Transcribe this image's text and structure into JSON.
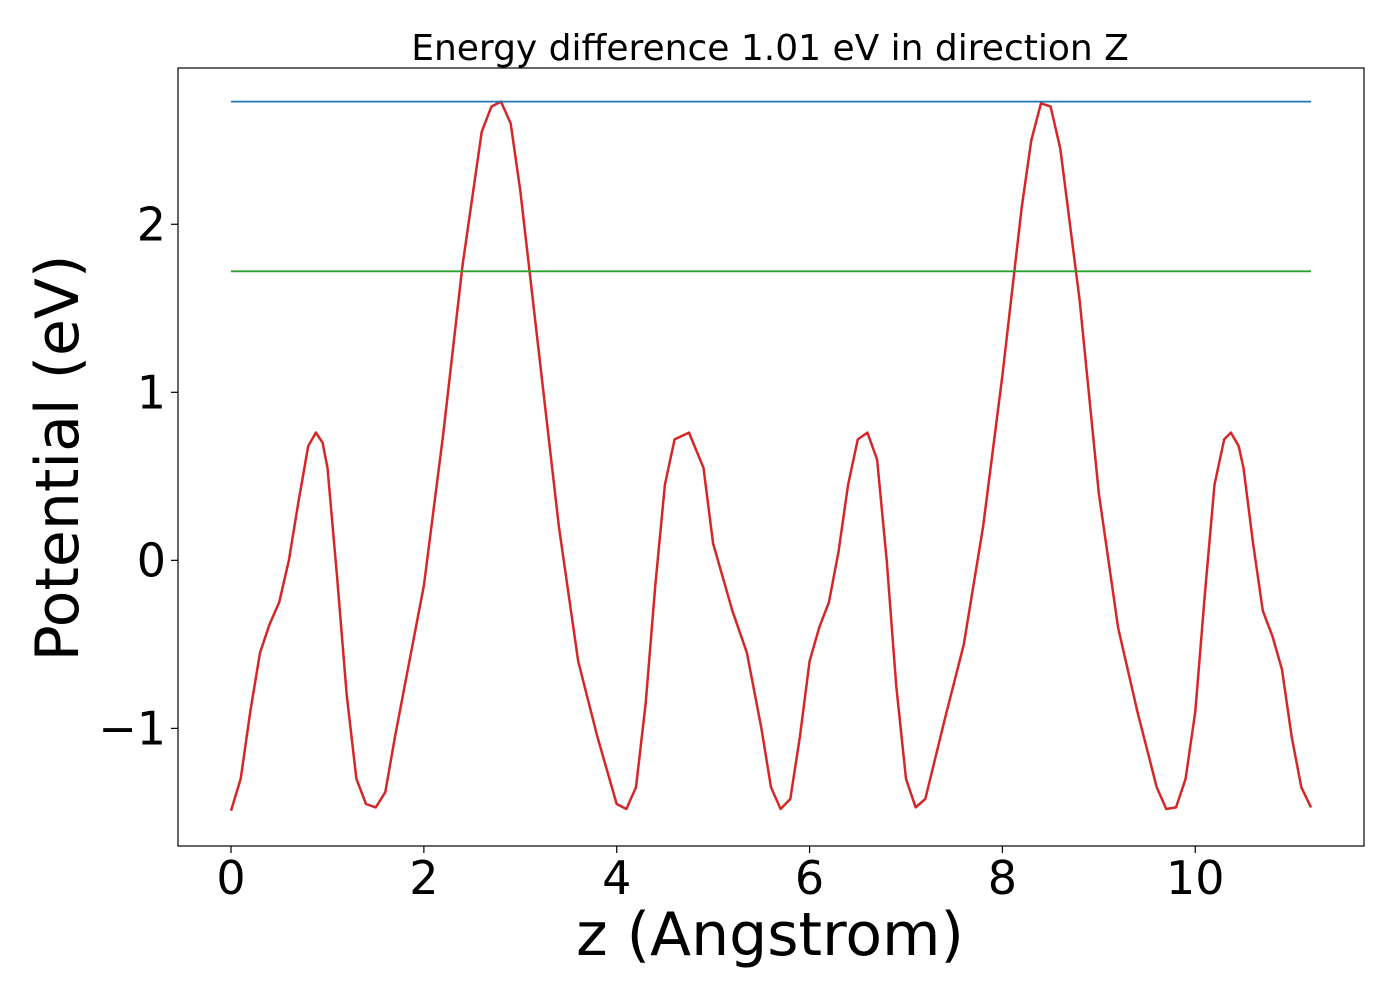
{
  "chart_data": {
    "type": "line",
    "title": "Energy difference 1.01 eV in direction Z",
    "xlabel": "z (Angstrom)",
    "ylabel": "Potential (eV)",
    "xlim": [
      -0.55,
      11.75
    ],
    "ylim": [
      -1.7,
      2.93
    ],
    "x_ticks": [
      0,
      2,
      4,
      6,
      8,
      10
    ],
    "x_tick_labels": [
      "0",
      "2",
      "4",
      "6",
      "8",
      "10"
    ],
    "y_ticks": [
      -1,
      0,
      1,
      2
    ],
    "y_tick_labels": [
      "−1",
      "0",
      "1",
      "2"
    ],
    "grid": false,
    "legend": "none",
    "series": [
      {
        "color": "#d62728",
        "x": [
          0.0,
          0.1,
          0.2,
          0.3,
          0.4,
          0.5,
          0.6,
          0.7,
          0.8,
          0.88,
          0.95,
          1.0,
          1.1,
          1.2,
          1.3,
          1.4,
          1.5,
          1.6,
          1.7,
          1.8,
          2.0,
          2.2,
          2.4,
          2.6,
          2.7,
          2.8,
          2.9,
          3.0,
          3.2,
          3.4,
          3.6,
          3.8,
          4.0,
          4.1,
          4.2,
          4.3,
          4.4,
          4.5,
          4.6,
          4.75,
          4.9,
          5.0,
          5.2,
          5.35,
          5.5,
          5.6,
          5.7,
          5.8,
          5.9,
          6.0,
          6.1,
          6.2,
          6.3,
          6.4,
          6.5,
          6.6,
          6.7,
          6.8,
          6.9,
          7.0,
          7.1,
          7.2,
          7.4,
          7.6,
          7.8,
          8.0,
          8.2,
          8.3,
          8.4,
          8.5,
          8.6,
          8.8,
          9.0,
          9.2,
          9.4,
          9.6,
          9.7,
          9.8,
          9.9,
          10.0,
          10.1,
          10.2,
          10.3,
          10.37,
          10.45,
          10.5,
          10.6,
          10.7,
          10.8,
          10.9,
          11.0,
          11.1,
          11.2
        ],
        "y": [
          -1.49,
          -1.3,
          -0.9,
          -0.55,
          -0.38,
          -0.25,
          0.0,
          0.35,
          0.68,
          0.76,
          0.7,
          0.55,
          -0.1,
          -0.8,
          -1.3,
          -1.45,
          -1.47,
          -1.38,
          -1.05,
          -0.75,
          -0.15,
          0.75,
          1.75,
          2.55,
          2.7,
          2.73,
          2.6,
          2.2,
          1.2,
          0.2,
          -0.6,
          -1.05,
          -1.45,
          -1.48,
          -1.35,
          -0.85,
          -0.15,
          0.45,
          0.72,
          0.76,
          0.55,
          0.1,
          -0.3,
          -0.55,
          -1.0,
          -1.35,
          -1.48,
          -1.42,
          -1.05,
          -0.6,
          -0.4,
          -0.25,
          0.05,
          0.45,
          0.72,
          0.76,
          0.6,
          0.0,
          -0.75,
          -1.3,
          -1.47,
          -1.42,
          -0.95,
          -0.5,
          0.2,
          1.1,
          2.1,
          2.5,
          2.72,
          2.7,
          2.45,
          1.55,
          0.4,
          -0.4,
          -0.9,
          -1.35,
          -1.48,
          -1.47,
          -1.3,
          -0.9,
          -0.2,
          0.45,
          0.72,
          0.76,
          0.68,
          0.55,
          0.1,
          -0.3,
          -0.45,
          -0.65,
          -1.05,
          -1.35,
          -1.47
        ]
      },
      {
        "color": "#1f77b4",
        "x": [
          0.0,
          11.2
        ],
        "y": [
          2.73,
          2.73
        ]
      },
      {
        "color": "#2ca02c",
        "x": [
          0.0,
          11.2
        ],
        "y": [
          1.72,
          1.72
        ]
      }
    ]
  }
}
